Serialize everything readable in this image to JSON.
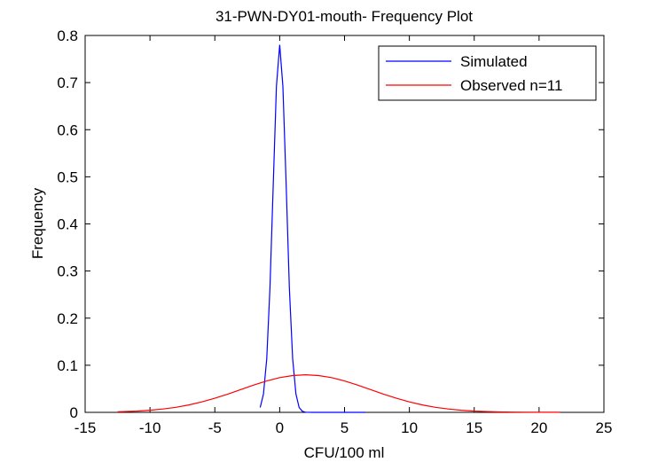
{
  "chart_data": {
    "type": "line",
    "title": "31-PWN-DY01-mouth- Frequency Plot",
    "xlabel": "CFU/100 ml",
    "ylabel": "Frequency",
    "xlim": [
      -15,
      25
    ],
    "ylim": [
      0,
      0.8
    ],
    "xticks": [
      -15,
      -10,
      -5,
      0,
      5,
      10,
      15,
      20,
      25
    ],
    "yticks": [
      0,
      0.1,
      0.2,
      0.3,
      0.4,
      0.5,
      0.6,
      0.7,
      0.8
    ],
    "grid": false,
    "legend_position": "top-right",
    "series": [
      {
        "name": "Simulated",
        "color": "#0000ff",
        "x": [
          -1.5,
          -1.25,
          -1,
          -0.75,
          -0.5,
          -0.25,
          0,
          0.25,
          0.5,
          0.75,
          1,
          1.25,
          1.5,
          1.75,
          2,
          2.5,
          3,
          4,
          5,
          6,
          6.6
        ],
        "y": [
          0.0103,
          0.0389,
          0.114,
          0.264,
          0.482,
          0.692,
          0.78,
          0.692,
          0.482,
          0.264,
          0.114,
          0.0389,
          0.0103,
          0.0022,
          0.0004,
          0,
          0,
          0,
          0,
          0,
          0
        ]
      },
      {
        "name": "Observed n=11",
        "color": "#ff0000",
        "x": [
          -12.5,
          -12,
          -11,
          -10,
          -9,
          -8,
          -7,
          -6,
          -5,
          -4,
          -3,
          -2,
          -1,
          0,
          1,
          2,
          3,
          4,
          5,
          6,
          7,
          8,
          9,
          10,
          11,
          12,
          13,
          14,
          15,
          16,
          17,
          18,
          19,
          20,
          21,
          21.6
        ],
        "y": [
          0.0012,
          0.0016,
          0.0027,
          0.0045,
          0.0071,
          0.0108,
          0.0158,
          0.0222,
          0.0299,
          0.0388,
          0.0484,
          0.0579,
          0.0667,
          0.0737,
          0.0782,
          0.0798,
          0.0782,
          0.0737,
          0.0667,
          0.0579,
          0.0484,
          0.0388,
          0.0299,
          0.0222,
          0.0158,
          0.0108,
          0.0071,
          0.0045,
          0.0027,
          0.0016,
          0.0009,
          0.0005,
          0.0003,
          0.0001,
          0.0001,
          0.0001
        ]
      }
    ]
  }
}
